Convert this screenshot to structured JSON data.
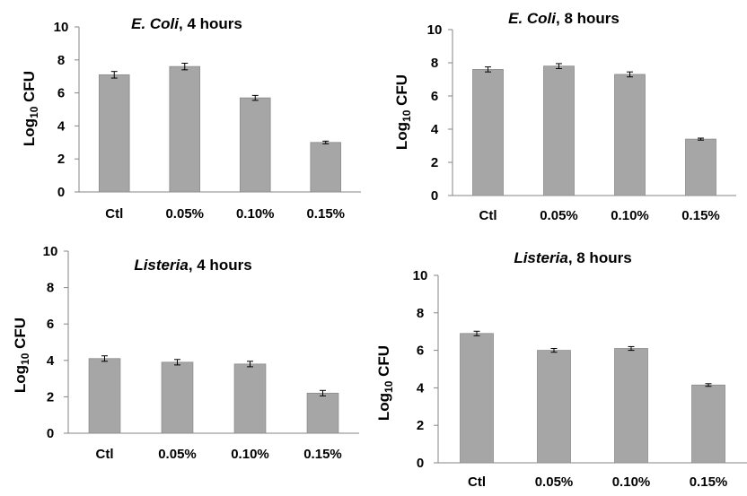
{
  "chart_data": [
    {
      "type": "bar",
      "title_italic": "E. Coli",
      "title_rest": ", 4 hours",
      "ylabel_main": "Log",
      "ylabel_sub": "10",
      "ylabel_end": " CFU",
      "categories": [
        "Ctl",
        "0.05%",
        "0.10%",
        "0.15%"
      ],
      "values": [
        7.1,
        7.6,
        5.7,
        3.0
      ],
      "errors": [
        0.2,
        0.2,
        0.15,
        0.08
      ],
      "ylim": [
        0,
        10
      ],
      "yticks": [
        "0",
        "2",
        "4",
        "6",
        "8",
        "10"
      ],
      "bar_color": "#a6a6a6",
      "grid": false
    },
    {
      "type": "bar",
      "title_italic": "E. Coli",
      "title_rest": ", 8 hours",
      "ylabel_main": "Log",
      "ylabel_sub": "10",
      "ylabel_end": " CFU",
      "categories": [
        "Ctl",
        "0.05%",
        "0.10%",
        "0.15%"
      ],
      "values": [
        7.6,
        7.8,
        7.3,
        3.4
      ],
      "errors": [
        0.15,
        0.15,
        0.15,
        0.06
      ],
      "ylim": [
        0,
        10
      ],
      "yticks": [
        "0",
        "2",
        "4",
        "6",
        "8",
        "10"
      ],
      "bar_color": "#a6a6a6",
      "grid": false
    },
    {
      "type": "bar",
      "title_italic": "Listeria",
      "title_rest": ", 4 hours",
      "ylabel_main": "Log",
      "ylabel_sub": "10",
      "ylabel_end": " CFU",
      "categories": [
        "Ctl",
        "0.05%",
        "0.10%",
        "0.15%"
      ],
      "values": [
        4.1,
        3.9,
        3.8,
        2.2
      ],
      "errors": [
        0.15,
        0.15,
        0.15,
        0.15
      ],
      "ylim": [
        0,
        10
      ],
      "yticks": [
        "0",
        "2",
        "4",
        "6",
        "8",
        "10"
      ],
      "bar_color": "#a6a6a6",
      "grid": false
    },
    {
      "type": "bar",
      "title_italic": "Listeria",
      "title_rest": ", 8 hours",
      "ylabel_main": "Log",
      "ylabel_sub": "10",
      "ylabel_end": " CFU",
      "categories": [
        "Ctl",
        "0.05%",
        "0.10%",
        "0.15%"
      ],
      "values": [
        6.9,
        6.0,
        6.1,
        4.15
      ],
      "errors": [
        0.12,
        0.1,
        0.1,
        0.07
      ],
      "ylim": [
        0,
        10
      ],
      "yticks": [
        "0",
        "2",
        "4",
        "6",
        "8",
        "10"
      ],
      "bar_color": "#a6a6a6",
      "grid": false
    }
  ]
}
